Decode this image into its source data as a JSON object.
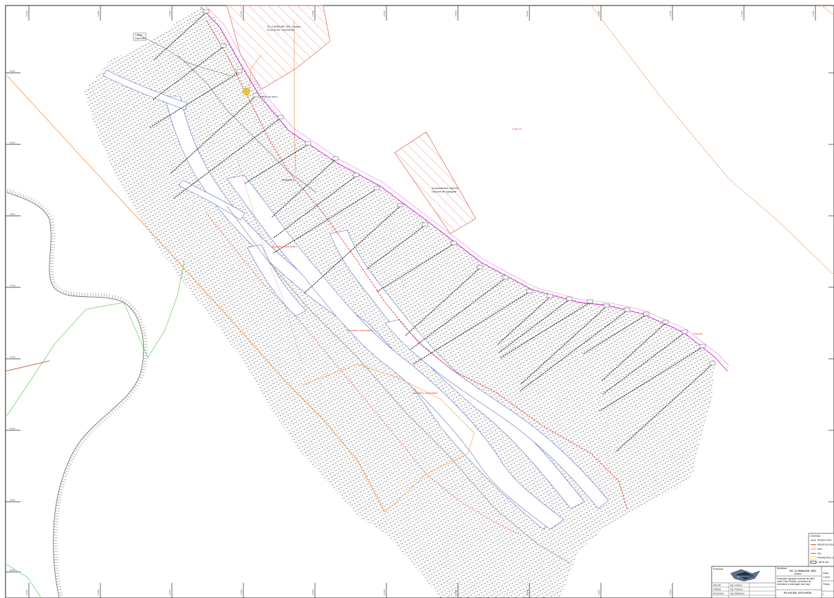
{
  "map": {
    "zones": {
      "station_label_line1": "SC CARBUNE SRL Oradea",
      "station_label_line2": "STATIE DE SORTARE",
      "field_label_line1": "Amplasament depozit",
      "field_label_line2": "Depozit de agregate"
    },
    "annotations": {
      "cota_north": "CSA 73",
      "cota_east": "CSA 66",
      "red_label_1": "perimetru exploatare",
      "red_label_2": "perimetru exploatare",
      "red_label_3": "perimetru exploatare",
      "top_left_label_line1": "Canal",
      "top_left_label_line2": "Deponie",
      "point_label": "Punct de lucru",
      "middle_label": "Balastiera"
    },
    "ticks": {
      "left": [
        "49000",
        "48500",
        "48000",
        "47500",
        "47000",
        "46500",
        "46000",
        "45500"
      ],
      "top": [
        "12000",
        "12500",
        "13000",
        "13500",
        "14000",
        "14500",
        "15000",
        "15500",
        "16000",
        "16500",
        "17000",
        "17500"
      ]
    }
  },
  "legend": {
    "title": "LEGENDA:",
    "items": [
      {
        "label": "DRUM LOCAL",
        "color": "#2e7d32"
      },
      {
        "label": "DRUM DE EXPLOATARE",
        "color": "#e53935"
      },
      {
        "label": "SDS",
        "color": "#ff8c3c"
      },
      {
        "label": "DIG",
        "color": "#d81bd6"
      },
      {
        "label": "PERIMETRUL EXPLOATARE",
        "color": "#f4d03f"
      },
      {
        "label": "LIMITA UAT",
        "color": "#111111"
      }
    ]
  },
  "title_block": {
    "proiectant_label": "Proiectant:",
    "logo_text": "GEOPROIECT",
    "beneficiar_label": "Beneficiar:",
    "beneficiar_name": "SC CARBUNE SRL",
    "beneficiar_city": "Oradea",
    "project_title_line1": "Exploatare agregate minerale din albia",
    "project_title_line2": "raului Crisul Repede, perimetrul de",
    "project_title_line3": "exploatare si amenajare mal drept",
    "plan_title": "PLAN DE SITUATIE",
    "rows": [
      {
        "role": "Intocmit",
        "name": "Ing. Ionescu"
      },
      {
        "role": "Verificat",
        "name": "Ing. Popescu"
      },
      {
        "role": "Sef proiect",
        "name": "Ing. Marinescu"
      }
    ],
    "scale_label": "Scara",
    "scale_value": "1:2000",
    "plansa_label": "Plansa",
    "plansa_value": "1"
  }
}
